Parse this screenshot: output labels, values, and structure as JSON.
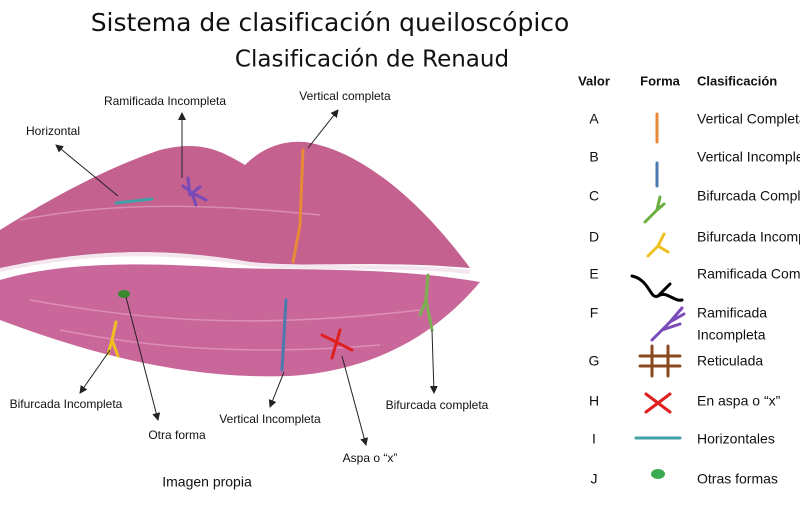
{
  "header": {
    "title": "Sistema de clasificación queiloscópico",
    "subtitle": "Clasificación de Renaud"
  },
  "annotations": [
    "Ramificada Incompleta",
    "Vertical completa",
    "Horizontal",
    "Bifurcada Incompleta",
    "Otra forma",
    "Vertical Incompleta",
    "Bifurcada completa",
    "Aspa o “x”"
  ],
  "caption": "Imagen propia",
  "table": {
    "columns": [
      "Valor",
      "Forma",
      "Clasificación"
    ],
    "rows": [
      [
        "A",
        "Vertical Completa"
      ],
      [
        "B",
        "Vertical Incompleta"
      ],
      [
        "C",
        "Bifurcada Completa"
      ],
      [
        "D",
        "Bifurcada Incompleta"
      ],
      [
        "E",
        "Ramificada Completa"
      ],
      [
        "F",
        "Ramificada",
        "Incompleta"
      ],
      [
        "G",
        "Reticulada"
      ],
      [
        "H",
        "En aspa o “x”"
      ],
      [
        "I",
        "Horizontales"
      ],
      [
        "J",
        "Otras formas"
      ]
    ]
  }
}
